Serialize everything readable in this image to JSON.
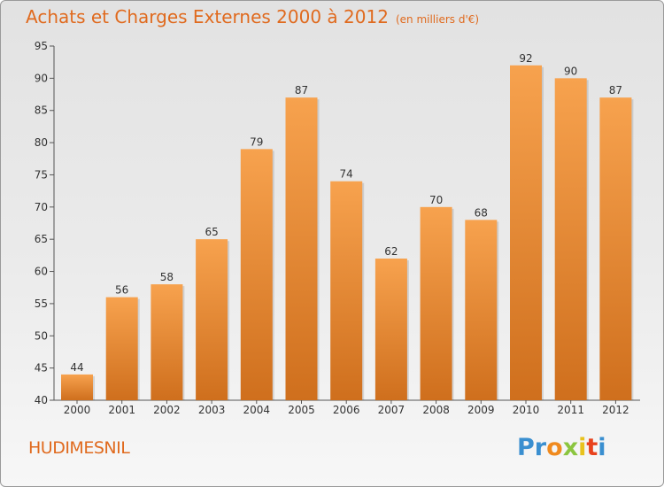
{
  "chart_data": {
    "type": "bar",
    "title": "Achats et Charges Externes 2000 à 2012",
    "subtitle": "(en milliers d'€)",
    "categories": [
      "2000",
      "2001",
      "2002",
      "2003",
      "2004",
      "2005",
      "2006",
      "2007",
      "2008",
      "2009",
      "2010",
      "2011",
      "2012"
    ],
    "values": [
      44,
      56,
      58,
      65,
      79,
      87,
      74,
      62,
      70,
      68,
      92,
      90,
      87
    ],
    "ylim": [
      40,
      95
    ],
    "yticks": [
      40,
      45,
      50,
      55,
      60,
      65,
      70,
      75,
      80,
      85,
      90,
      95
    ],
    "xlabel": "",
    "ylabel": "",
    "grid": false,
    "data_labels": true,
    "colors": {
      "bar_top": "#f7a24e",
      "bar_bottom": "#cf6f1d",
      "accent": "#e06a1e"
    }
  },
  "location": "HUDIMESNIL",
  "logo": {
    "letters": [
      "P",
      "r",
      "o",
      "x",
      "i",
      "t",
      "i"
    ],
    "colors": [
      "#3a8fd0",
      "#3a8fd0",
      "#f08a1e",
      "#8bc53f",
      "#e8c21d",
      "#e8421d",
      "#3a8fd0"
    ]
  }
}
